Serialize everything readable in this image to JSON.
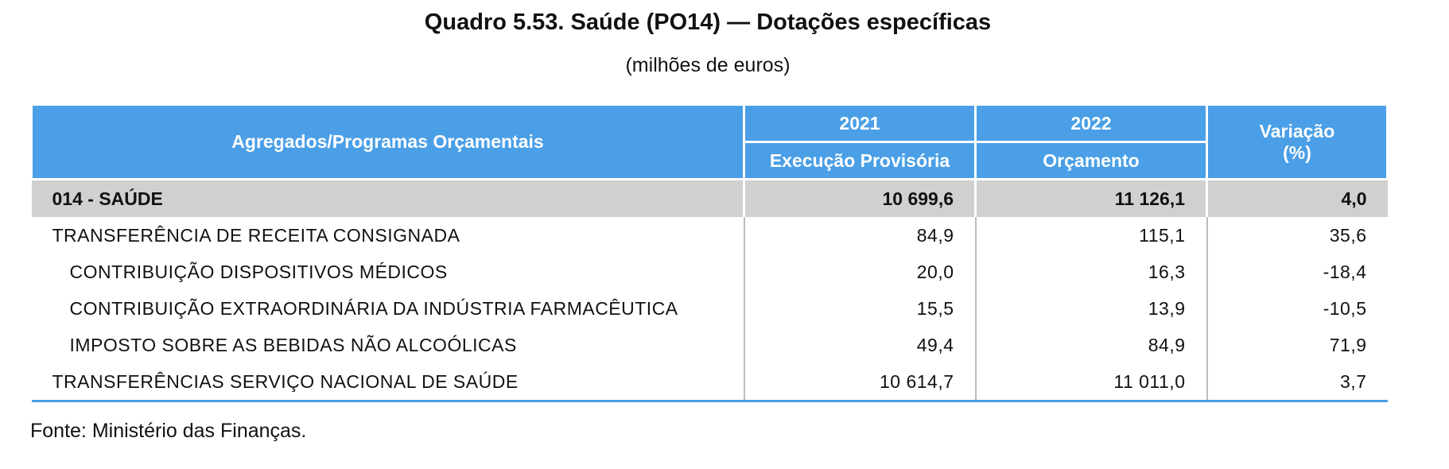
{
  "title": "Quadro 5.53. Saúde (PO14) — Dotações específicas",
  "subtitle": "(milhões de euros)",
  "header": {
    "col1": "Agregados/Programas Orçamentais",
    "year_2021": "2021",
    "year_2022": "2022",
    "variation_line1": "Variação",
    "variation_line2": "(%)",
    "sub_2021": "Execução Provisória",
    "sub_2022": "Orçamento"
  },
  "rows": [
    {
      "label": "014 - SAÚDE",
      "v2021": "10 699,6",
      "v2022": "11 126,1",
      "var": "4,0"
    },
    {
      "label": "TRANSFERÊNCIA DE RECEITA CONSIGNADA",
      "v2021": "84,9",
      "v2022": "115,1",
      "var": "35,6"
    },
    {
      "label": "CONTRIBUIÇÃO DISPOSITIVOS MÉDICOS",
      "v2021": "20,0",
      "v2022": "16,3",
      "var": "-18,4"
    },
    {
      "label": "CONTRIBUIÇÃO EXTRAORDINÁRIA DA INDÚSTRIA FARMACÊUTICA",
      "v2021": "15,5",
      "v2022": "13,9",
      "var": "-10,5"
    },
    {
      "label": "IMPOSTO SOBRE AS BEBIDAS NÃO ALCOÓLICAS",
      "v2021": "49,4",
      "v2022": "84,9",
      "var": "71,9"
    },
    {
      "label": "TRANSFERÊNCIAS SERVIÇO NACIONAL DE SAÚDE",
      "v2021": "10 614,7",
      "v2022": "11 011,0",
      "var": "3,7"
    }
  ],
  "source": "Fonte: Ministério das Finanças.",
  "colors": {
    "header_bg": "#4a9fe6",
    "total_row_bg": "#d0d0d0"
  }
}
